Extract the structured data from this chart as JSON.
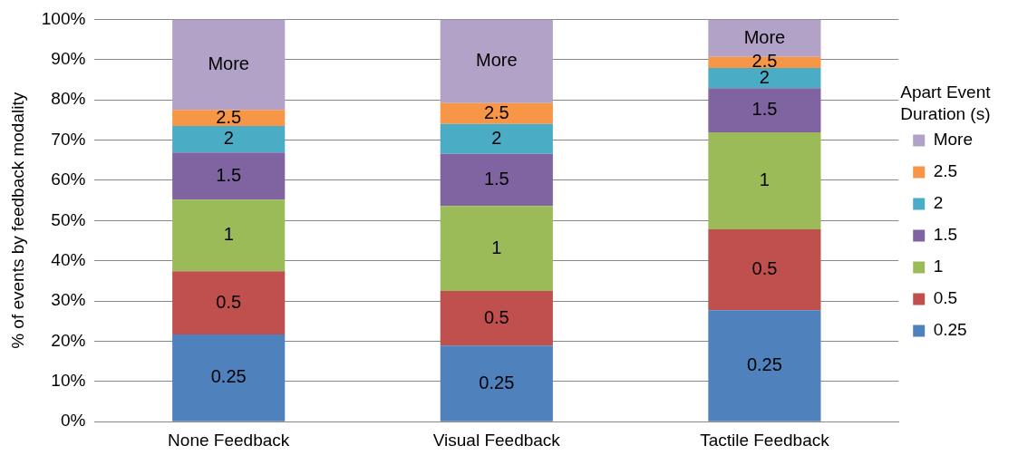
{
  "chart_data": {
    "type": "bar",
    "stacked": true,
    "ylabel": "% of events by feedback modality",
    "legend_title": "Apart Event Duration (s)",
    "categories": [
      "None Feedback",
      "Visual Feedback",
      "Tactile Feedback"
    ],
    "series": [
      {
        "name": "0.25",
        "color": "#4f81bd",
        "values": [
          21.7,
          18.9,
          27.7
        ]
      },
      {
        "name": "0.5",
        "color": "#c0504d",
        "values": [
          15.7,
          13.6,
          20.1
        ]
      },
      {
        "name": "1",
        "color": "#9bbb59",
        "values": [
          17.8,
          21.1,
          24.1
        ]
      },
      {
        "name": "1.5",
        "color": "#8064a2",
        "values": [
          11.7,
          13.0,
          11.0
        ]
      },
      {
        "name": "2",
        "color": "#4bacc6",
        "values": [
          6.6,
          7.4,
          5.0
        ]
      },
      {
        "name": "2.5",
        "color": "#f79646",
        "values": [
          4.0,
          5.2,
          2.8
        ]
      },
      {
        "name": "More",
        "color": "#b2a2c7",
        "values": [
          22.5,
          20.8,
          9.3
        ]
      }
    ],
    "ylim": [
      0,
      100
    ],
    "yticks": [
      {
        "value": 0,
        "label": "0%"
      },
      {
        "value": 10,
        "label": "10%"
      },
      {
        "value": 20,
        "label": "20%"
      },
      {
        "value": 30,
        "label": "30%"
      },
      {
        "value": 40,
        "label": "40%"
      },
      {
        "value": 50,
        "label": "50%"
      },
      {
        "value": 60,
        "label": "60%"
      },
      {
        "value": 70,
        "label": "70%"
      },
      {
        "value": 80,
        "label": "80%"
      },
      {
        "value": 90,
        "label": "90%"
      },
      {
        "value": 100,
        "label": "100%"
      }
    ],
    "grid": "y",
    "legend": "right"
  }
}
